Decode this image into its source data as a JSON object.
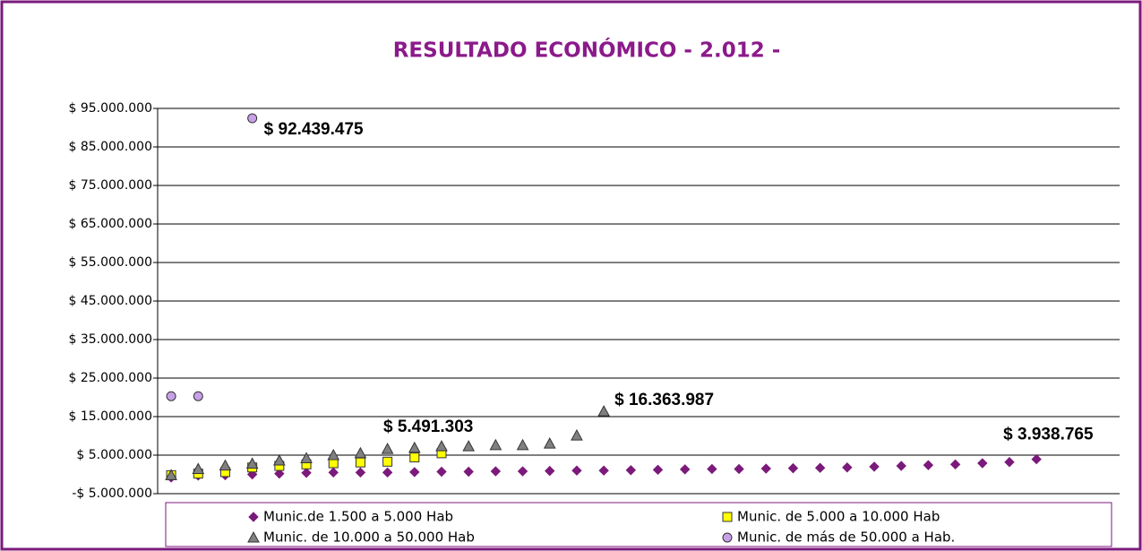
{
  "chart_data": {
    "type": "scatter",
    "title": "RESULTADO ECONÓMICO - 2.012 -",
    "categories": [
      null,
      null,
      null,
      null,
      null,
      null,
      null,
      null,
      null,
      null,
      null,
      null,
      null,
      null,
      null,
      null,
      null,
      null,
      null,
      null,
      null,
      null,
      null,
      null,
      null,
      null,
      null,
      null,
      null,
      null,
      null,
      null,
      null
    ],
    "ylim": [
      -5000000,
      95000000
    ],
    "yticks": [
      {
        "value": -5000000,
        "label": "-$ 5.000.000"
      },
      {
        "value": 5000000,
        "label": "$ 5.000.000"
      },
      {
        "value": 15000000,
        "label": "$ 15.000.000"
      },
      {
        "value": 25000000,
        "label": "$ 25.000.000"
      },
      {
        "value": 35000000,
        "label": "$ 35.000.000"
      },
      {
        "value": 45000000,
        "label": "$ 45.000.000"
      },
      {
        "value": 55000000,
        "label": "$ 55.000.000"
      },
      {
        "value": 65000000,
        "label": "$ 65.000.000"
      },
      {
        "value": 75000000,
        "label": "$ 75.000.000"
      },
      {
        "value": 85000000,
        "label": "$ 85.000.000"
      },
      {
        "value": 95000000,
        "label": "$ 95.000.000"
      }
    ],
    "grid": true,
    "legend": "bottom",
    "series": [
      {
        "name": "Munic.de 1.500 a 5.000 Hab",
        "color": "#7b1a7b",
        "marker": "diamond",
        "values": [
          -800000,
          -300000,
          -200000,
          0,
          200000,
          400000,
          500000,
          500000,
          500000,
          600000,
          700000,
          700000,
          800000,
          800000,
          900000,
          1000000,
          1000000,
          1100000,
          1200000,
          1300000,
          1400000,
          1400000,
          1500000,
          1600000,
          1700000,
          1800000,
          2000000,
          2200000,
          2400000,
          2600000,
          2900000,
          3200000,
          3938765
        ],
        "value_labels": [
          null,
          null,
          null,
          null,
          null,
          null,
          null,
          null,
          null,
          null,
          null,
          null,
          null,
          null,
          null,
          null,
          null,
          null,
          null,
          null,
          null,
          null,
          null,
          null,
          null,
          null,
          null,
          null,
          null,
          null,
          null,
          null,
          "$ 3.938.765"
        ]
      },
      {
        "name": "Munic. de 5.000 a 10.000 Hab",
        "color": "#ffff00",
        "marker": "square",
        "values": [
          -200000,
          200000,
          600000,
          1800000,
          2200000,
          2600000,
          2900000,
          3100000,
          3300000,
          4400000,
          5491303,
          null,
          null,
          null,
          null,
          null,
          null,
          null,
          null,
          null,
          null,
          null,
          null,
          null,
          null,
          null,
          null,
          null,
          null,
          null,
          null,
          null,
          null
        ],
        "value_labels": [
          null,
          null,
          null,
          null,
          null,
          null,
          null,
          null,
          null,
          null,
          "$ 5.491.303",
          null,
          null,
          null,
          null,
          null,
          null,
          null,
          null,
          null,
          null,
          null,
          null,
          null,
          null,
          null,
          null,
          null,
          null,
          null,
          null,
          null,
          null
        ]
      },
      {
        "name": "Munic. de 10.000 a 50.000 Hab",
        "color": "#808080",
        "marker": "triangle",
        "values": [
          -200000,
          1400000,
          2300000,
          2800000,
          3600000,
          4200000,
          5000000,
          5500000,
          6600000,
          6900000,
          7300000,
          7300000,
          7600000,
          7600000,
          8000000,
          10100000,
          16363987,
          null,
          null,
          null,
          null,
          null,
          null,
          null,
          null,
          null,
          null,
          null,
          null,
          null,
          null,
          null,
          null
        ],
        "value_labels": [
          null,
          null,
          null,
          null,
          null,
          null,
          null,
          null,
          null,
          null,
          null,
          null,
          null,
          null,
          null,
          null,
          "$ 16.363.987",
          null,
          null,
          null,
          null,
          null,
          null,
          null,
          null,
          null,
          null,
          null,
          null,
          null,
          null,
          null,
          null
        ]
      },
      {
        "name": "Munic. de más de 50.000 a Hab.",
        "color": "#c8a0e8",
        "marker": "circle",
        "values": [
          20300000,
          20300000,
          null,
          92439475,
          null,
          null,
          null,
          null,
          null,
          null,
          null,
          null,
          null,
          null,
          null,
          null,
          null,
          null,
          null,
          null,
          null,
          null,
          null,
          null,
          null,
          null,
          null,
          null,
          null,
          null,
          null,
          null,
          null
        ],
        "value_labels": [
          null,
          null,
          null,
          "$ 92.439.475",
          null,
          null,
          null,
          null,
          null,
          null,
          null,
          null,
          null,
          null,
          null,
          null,
          null,
          null,
          null,
          null,
          null,
          null,
          null,
          null,
          null,
          null,
          null,
          null,
          null,
          null,
          null,
          null,
          null
        ]
      }
    ]
  }
}
